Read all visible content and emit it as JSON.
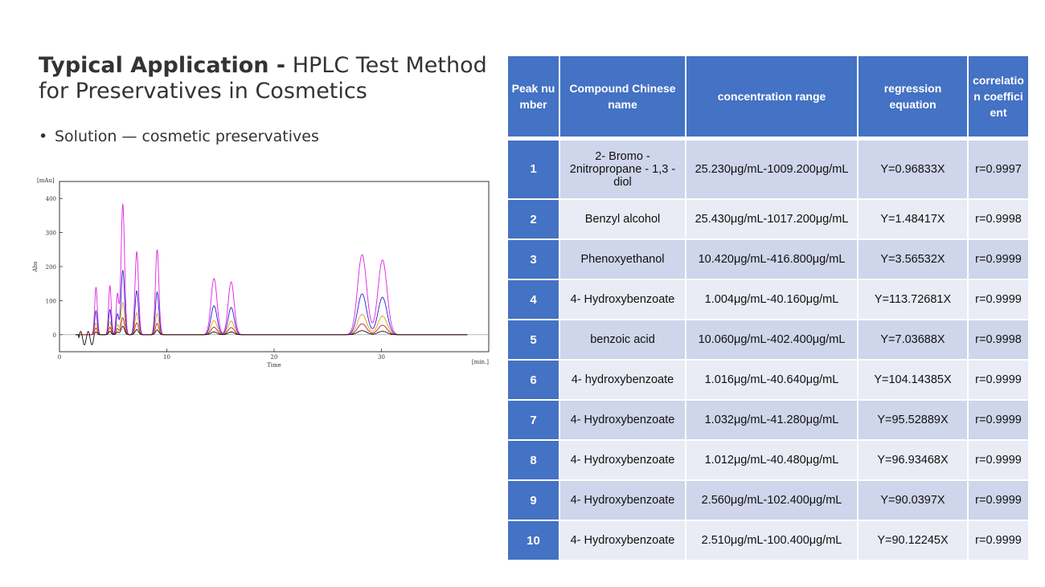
{
  "heading": {
    "bold": "Typical Application -",
    "rest": " HPLC Test Method for Preservatives in Cosmetics"
  },
  "bullet": "Solution — cosmetic preservatives",
  "table": {
    "headers": [
      "Peak number",
      "Compound Chinese name",
      "concentration range",
      "regression equation",
      "correlation coefficient"
    ],
    "rows": [
      {
        "peak": "1",
        "name": "2- Bromo - 2nitropropane - 1,3 - diol",
        "range": "25.230μg/mL-1009.200μg/mL",
        "eq": "Y=0.96833X",
        "r": "r=0.9997"
      },
      {
        "peak": "2",
        "name": "Benzyl alcohol",
        "range": "25.430μg/mL-1017.200μg/mL",
        "eq": "Y=1.48417X",
        "r": "r=0.9998"
      },
      {
        "peak": "3",
        "name": "Phenoxyethanol",
        "range": "10.420μg/mL-416.800μg/mL",
        "eq": "Y=3.56532X",
        "r": "r=0.9999"
      },
      {
        "peak": "4",
        "name": "4- Hydroxybenzoate",
        "range": "1.004μg/mL-40.160μg/mL",
        "eq": "Y=113.72681X",
        "r": "r=0.9999"
      },
      {
        "peak": "5",
        "name": "benzoic acid",
        "range": "10.060μg/mL-402.400μg/mL",
        "eq": "Y=7.03688X",
        "r": "r=0.9998"
      },
      {
        "peak": "6",
        "name": "4- hydroxybenzoate",
        "range": "1.016μg/mL-40.640μg/mL",
        "eq": "Y=104.14385X",
        "r": "r=0.9999"
      },
      {
        "peak": "7",
        "name": "4- Hydroxybenzoate",
        "range": "1.032μg/mL-41.280μg/mL",
        "eq": "Y=95.52889X",
        "r": "r=0.9999"
      },
      {
        "peak": "8",
        "name": "4- Hydroxybenzoate",
        "range": "1.012μg/mL-40.480μg/mL",
        "eq": "Y=96.93468X",
        "r": "r=0.9999"
      },
      {
        "peak": "9",
        "name": "4- Hydroxybenzoate",
        "range": "2.560μg/mL-102.400μg/mL",
        "eq": "Y=90.0397X",
        "r": "r=0.9999"
      },
      {
        "peak": "10",
        "name": "4- Hydroxybenzoate",
        "range": "2.510μg/mL-100.400μg/mL",
        "eq": "Y=90.12245X",
        "r": "r=0.9999"
      }
    ]
  },
  "chart_data": {
    "type": "line",
    "xlabel": "Time",
    "ylabel": "Abs",
    "x_unit": "[min.]",
    "y_unit": "[mAu]",
    "xlim": [
      0,
      40
    ],
    "ylim": [
      -50,
      450
    ],
    "x_ticks": [
      0,
      10,
      20,
      30
    ],
    "y_ticks": [
      0,
      100,
      200,
      300,
      400
    ],
    "grid": false,
    "colors": [
      "#e020e0",
      "#2020d0",
      "#e0a020",
      "#c02020",
      "#101010"
    ],
    "peaks_time": [
      3.4,
      4.7,
      5.4,
      5.9,
      7.2,
      9.1,
      14.4,
      16.0,
      28.2,
      30.1
    ],
    "series": [
      {
        "values": [
          140,
          145,
          120,
          385,
          245,
          250,
          165,
          155,
          235,
          220
        ]
      },
      {
        "values": [
          70,
          75,
          60,
          190,
          130,
          125,
          85,
          80,
          120,
          110
        ]
      },
      {
        "values": [
          35,
          38,
          30,
          95,
          65,
          62,
          42,
          40,
          60,
          55
        ]
      },
      {
        "values": [
          20,
          22,
          18,
          50,
          35,
          33,
          22,
          21,
          32,
          28
        ]
      },
      {
        "values": [
          8,
          10,
          8,
          25,
          15,
          14,
          8,
          8,
          12,
          10
        ]
      }
    ]
  }
}
